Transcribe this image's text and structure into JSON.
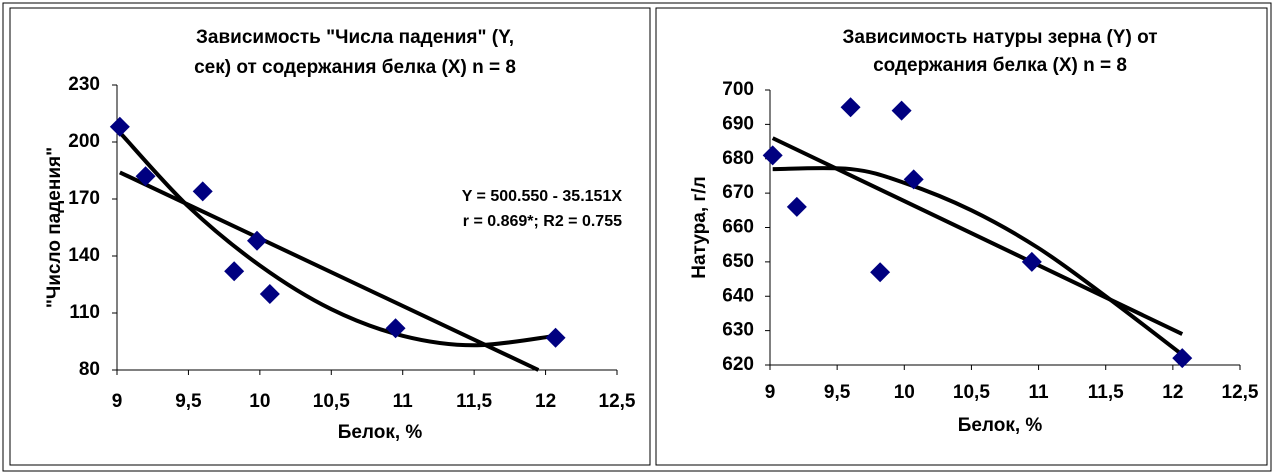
{
  "chart_data": [
    {
      "type": "scatter",
      "title": [
        "Зависимость \"Числа падения\" (Y,",
        "сек) от содержания белка (X) n = 8"
      ],
      "x_label": "Белок, %",
      "y_label": "\"Число падения\"",
      "annotations": [
        "Y = 500.550 - 35.151X",
        "r = 0.869*; R2 = 0.755"
      ],
      "xlim": [
        9,
        12.5
      ],
      "xticks": [
        9,
        {
          "value": 9.5,
          "label": "9,5"
        },
        10,
        {
          "value": 10.5,
          "label": "10,5"
        },
        11,
        {
          "value": 11.5,
          "label": "11,5"
        },
        12,
        {
          "value": 12.5,
          "label": "12,5"
        }
      ],
      "ylim": [
        80,
        230
      ],
      "yticks": [
        80,
        110,
        140,
        170,
        200,
        230
      ],
      "series": [
        {
          "color": "#000080",
          "x": [
            9.02,
            9.2,
            9.6,
            9.82,
            9.98,
            10.07,
            10.95,
            12.07
          ],
          "values": [
            208,
            182,
            174,
            132,
            148,
            120,
            102,
            97
          ]
        }
      ],
      "trendlines": [
        {
          "color": "#000000",
          "x": [
            9.02,
            11.95
          ],
          "values": [
            184,
            80
          ]
        },
        {
          "color": "#000000",
          "x": [
            9.02,
            9.5,
            10,
            10.5,
            11,
            11.5,
            12.07
          ],
          "values": [
            205,
            166,
            135,
            112,
            98,
            93,
            98
          ]
        }
      ]
    },
    {
      "type": "scatter",
      "title": [
        "Зависимость натуры зерна (Y) от",
        "содержания белка (X) n = 8"
      ],
      "x_label": "Белок, %",
      "y_label": "Натура, г/л",
      "xlim": [
        9,
        12.5
      ],
      "xticks": [
        9,
        {
          "value": 9.5,
          "label": "9,5"
        },
        10,
        {
          "value": 10.5,
          "label": "10,5"
        },
        11,
        {
          "value": 11.5,
          "label": "11,5"
        },
        12,
        {
          "value": 12.5,
          "label": "12,5"
        }
      ],
      "ylim": [
        620,
        700
      ],
      "yticks": [
        620,
        630,
        640,
        650,
        660,
        670,
        680,
        690,
        700
      ],
      "series": [
        {
          "color": "#000080",
          "x": [
            9.02,
            9.2,
            9.6,
            9.82,
            9.98,
            10.07,
            10.95,
            12.07
          ],
          "values": [
            681,
            666,
            695,
            647,
            694,
            674,
            650,
            622
          ]
        }
      ],
      "trendlines": [
        {
          "color": "#000000",
          "x": [
            9.02,
            12.07
          ],
          "values": [
            686,
            629
          ]
        },
        {
          "color": "#000000",
          "x": [
            9.02,
            9.6,
            10,
            10.5,
            11,
            11.5,
            12.07
          ],
          "values": [
            677,
            677,
            673,
            665,
            654,
            640,
            623
          ]
        }
      ]
    }
  ]
}
